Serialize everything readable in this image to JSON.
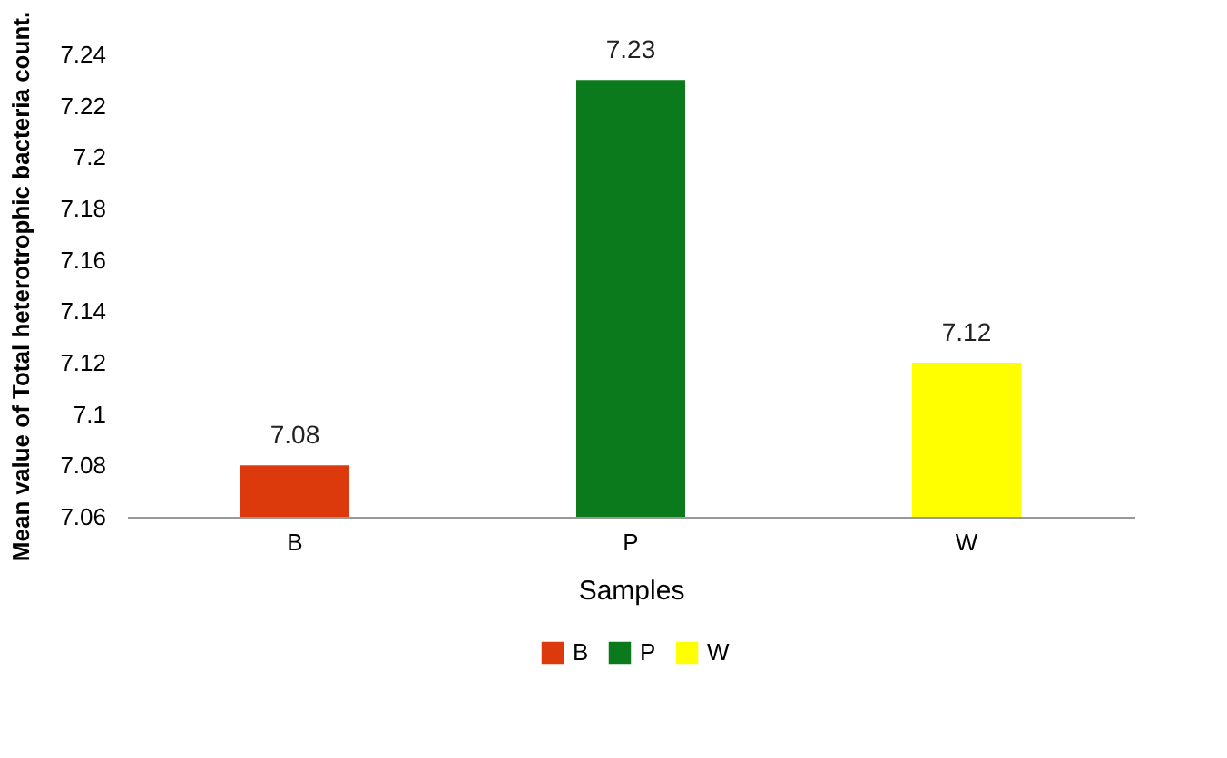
{
  "chart_data": {
    "type": "bar",
    "xlabel": "Samples",
    "ylabel": "Mean value of Total heterotrophic bacteria count.",
    "categories": [
      "B",
      "P",
      "W"
    ],
    "series": [
      {
        "name": "B",
        "color": "#dc3a0c",
        "values": [
          7.08,
          null,
          null
        ]
      },
      {
        "name": "P",
        "color": "#0b7a1c",
        "values": [
          null,
          7.23,
          null
        ]
      },
      {
        "name": "W",
        "color": "#ffff00",
        "values": [
          null,
          null,
          7.12
        ]
      }
    ],
    "ylim": [
      7.06,
      7.24
    ],
    "yticks": [
      7.06,
      7.08,
      7.1,
      7.12,
      7.14,
      7.16,
      7.18,
      7.2,
      7.22,
      7.24
    ],
    "data_labels": true,
    "grid": false,
    "legend": "bottom"
  }
}
